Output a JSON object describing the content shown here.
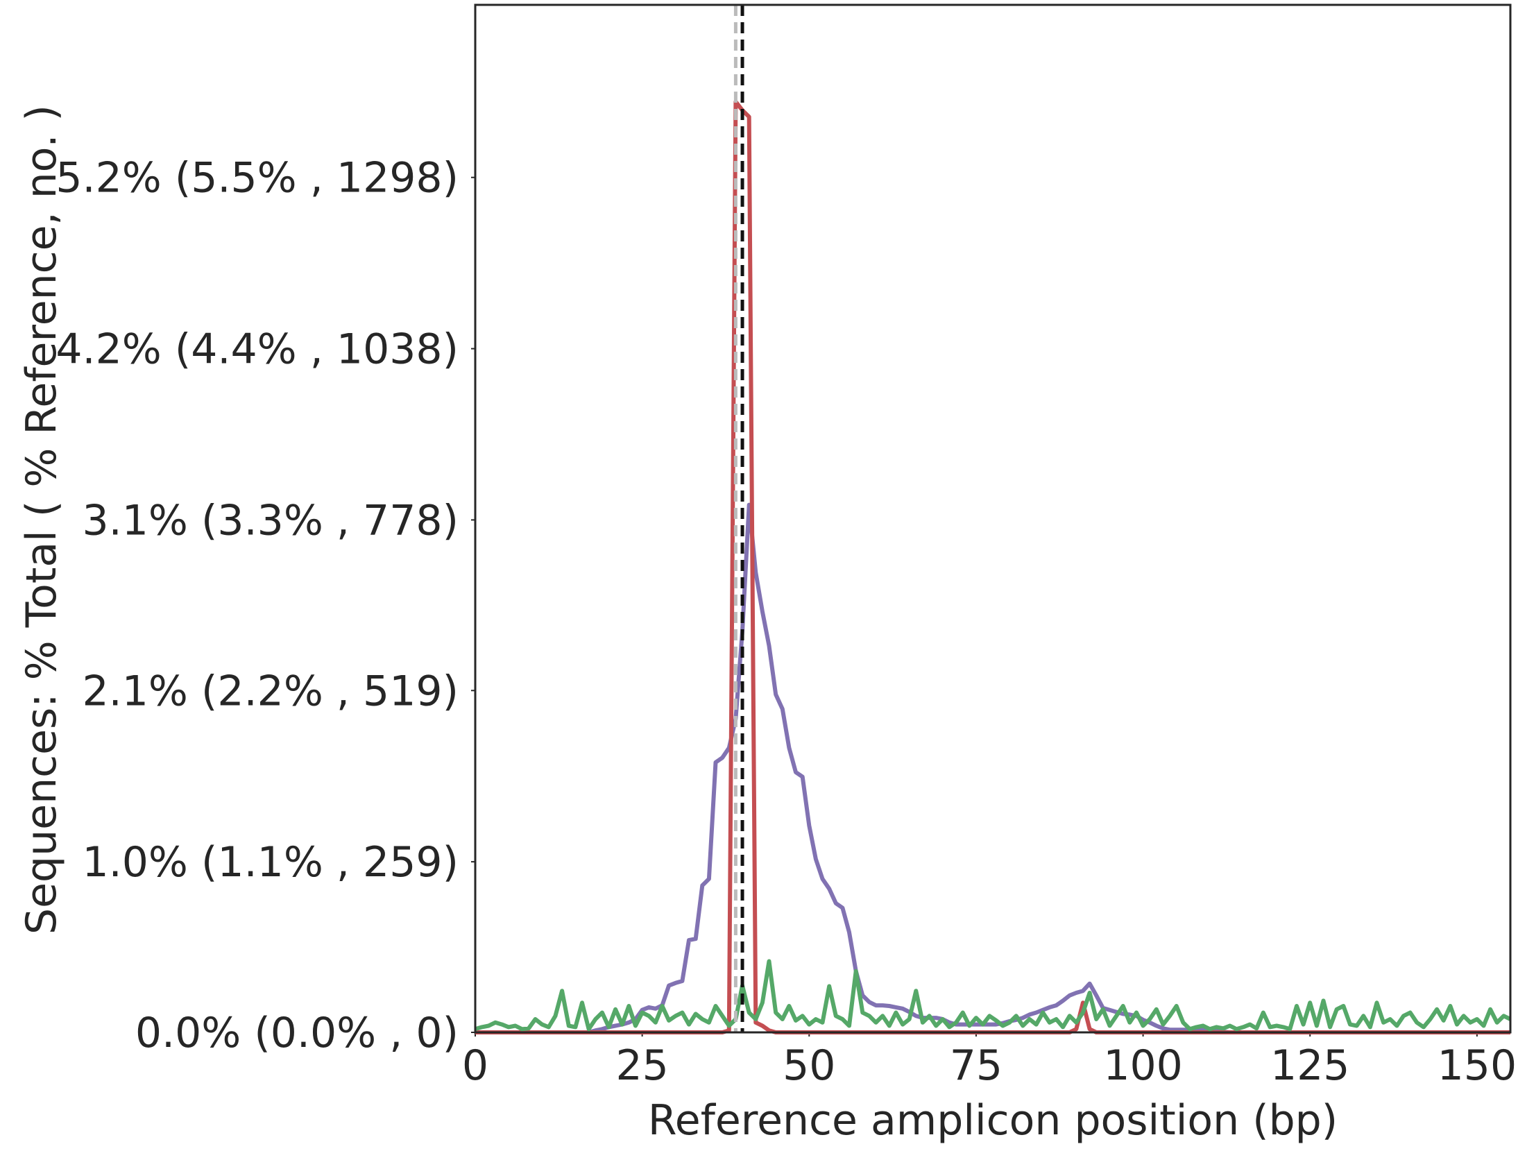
{
  "chart_data": {
    "type": "line",
    "x_label": "Reference amplicon position (bp)",
    "y_label": "Sequences: % Total ( % Reference, no. )",
    "xlim": [
      0,
      155
    ],
    "ylim": [
      0,
      1560
    ],
    "xticks": [
      0,
      25,
      50,
      75,
      100,
      125,
      150
    ],
    "yticks": [
      {
        "value": 0,
        "label": "0.0% (0.0% , 0)"
      },
      {
        "value": 259,
        "label": "1.0% (1.1% , 259)"
      },
      {
        "value": 519,
        "label": "2.1% (2.2% , 519)"
      },
      {
        "value": 778,
        "label": "3.1% (3.3% , 778)"
      },
      {
        "value": 1038,
        "label": "4.2% (4.4% , 1038)"
      },
      {
        "value": 1298,
        "label": "5.2% (5.5% , 1298)"
      }
    ],
    "vlines": [
      {
        "x": 39,
        "color": "#bbbbbb"
      },
      {
        "x": 40,
        "color": "#111111"
      }
    ],
    "x": [
      0,
      1,
      2,
      3,
      4,
      5,
      6,
      7,
      8,
      9,
      10,
      11,
      12,
      13,
      14,
      15,
      16,
      17,
      18,
      19,
      20,
      21,
      22,
      23,
      24,
      25,
      26,
      27,
      28,
      29,
      30,
      31,
      32,
      33,
      34,
      35,
      36,
      37,
      38,
      39,
      40,
      41,
      42,
      43,
      44,
      45,
      46,
      47,
      48,
      49,
      50,
      51,
      52,
      53,
      54,
      55,
      56,
      57,
      58,
      59,
      60,
      61,
      62,
      63,
      64,
      65,
      66,
      67,
      68,
      69,
      70,
      71,
      72,
      73,
      74,
      75,
      76,
      77,
      78,
      79,
      80,
      81,
      82,
      83,
      84,
      85,
      86,
      87,
      88,
      89,
      90,
      91,
      92,
      93,
      94,
      95,
      96,
      97,
      98,
      99,
      100,
      101,
      102,
      103,
      104,
      105,
      106,
      107,
      108,
      109,
      110,
      111,
      112,
      113,
      114,
      115,
      116,
      117,
      118,
      119,
      120,
      121,
      122,
      123,
      124,
      125,
      126,
      127,
      128,
      129,
      130,
      131,
      132,
      133,
      134,
      135,
      136,
      137,
      138,
      139,
      140,
      141,
      142,
      143,
      144,
      145,
      146,
      147,
      148,
      149,
      150,
      151,
      152,
      153,
      154,
      155
    ],
    "series": [
      {
        "color": "#8172b2",
        "values": [
          0,
          0,
          0,
          0,
          0,
          0,
          0,
          0,
          0,
          0,
          0,
          0,
          0,
          0,
          0,
          0,
          0,
          0,
          3,
          5,
          8,
          10,
          12,
          15,
          20,
          34,
          38,
          36,
          41,
          71,
          75,
          78,
          140,
          142,
          223,
          233,
          410,
          417,
          432,
          476,
          609,
          801,
          698,
          639,
          587,
          513,
          491,
          432,
          395,
          388,
          314,
          263,
          233,
          218,
          196,
          189,
          152,
          93,
          56,
          46,
          41,
          41,
          40,
          38,
          36,
          31,
          25,
          22,
          22,
          22,
          20,
          15,
          12,
          12,
          12,
          12,
          12,
          12,
          12,
          14,
          17,
          19,
          22,
          27,
          30,
          34,
          38,
          41,
          48,
          56,
          60,
          63,
          74,
          56,
          37,
          34,
          31,
          28,
          27,
          25,
          19,
          15,
          10,
          6,
          4,
          4,
          4,
          4,
          4,
          4,
          3,
          2,
          1,
          0,
          0,
          0,
          0,
          0,
          0,
          0,
          0,
          0,
          0,
          0,
          0,
          0,
          0,
          0,
          0,
          0,
          0,
          0,
          0,
          0,
          0,
          0,
          0,
          0,
          0,
          0,
          0,
          0,
          0,
          0,
          0,
          0,
          0,
          0,
          0,
          0,
          0,
          0,
          0,
          0,
          0,
          0
        ]
      },
      {
        "color": "#c44e52",
        "values": [
          0,
          0,
          0,
          0,
          0,
          0,
          0,
          0,
          0,
          0,
          0,
          0,
          0,
          0,
          0,
          0,
          0,
          0,
          0,
          0,
          0,
          0,
          0,
          0,
          0,
          0,
          0,
          0,
          0,
          0,
          0,
          0,
          0,
          0,
          0,
          0,
          0,
          0,
          3,
          1413,
          1400,
          1390,
          15,
          10,
          3,
          0,
          0,
          0,
          0,
          0,
          0,
          0,
          0,
          0,
          0,
          0,
          0,
          0,
          0,
          0,
          0,
          0,
          0,
          0,
          0,
          0,
          0,
          0,
          0,
          0,
          0,
          0,
          0,
          0,
          0,
          0,
          0,
          0,
          0,
          0,
          0,
          0,
          0,
          0,
          0,
          0,
          0,
          0,
          0,
          0,
          5,
          45,
          5,
          0,
          0,
          0,
          0,
          0,
          0,
          0,
          0,
          0,
          0,
          0,
          0,
          0,
          0,
          0,
          0,
          0,
          0,
          0,
          0,
          0,
          0,
          0,
          0,
          0,
          0,
          0,
          0,
          0,
          0,
          0,
          0,
          0,
          0,
          0,
          0,
          0,
          0,
          0,
          0,
          0,
          0,
          0,
          0,
          0,
          0,
          0,
          0,
          0,
          0,
          0,
          0,
          0,
          0,
          0,
          0,
          0,
          0,
          0,
          0,
          0,
          0,
          0
        ]
      },
      {
        "color": "#55a868",
        "values": [
          5,
          8,
          10,
          15,
          12,
          8,
          10,
          5,
          6,
          20,
          12,
          8,
          25,
          63,
          10,
          8,
          45,
          5,
          20,
          30,
          8,
          35,
          12,
          40,
          10,
          30,
          25,
          15,
          40,
          18,
          25,
          30,
          12,
          28,
          20,
          15,
          40,
          25,
          10,
          20,
          71,
          30,
          20,
          45,
          108,
          30,
          20,
          40,
          18,
          25,
          12,
          20,
          15,
          70,
          25,
          20,
          10,
          93,
          30,
          25,
          15,
          25,
          10,
          30,
          12,
          20,
          63,
          15,
          25,
          10,
          20,
          8,
          15,
          30,
          10,
          22,
          12,
          25,
          18,
          10,
          15,
          25,
          10,
          20,
          12,
          30,
          15,
          20,
          8,
          25,
          15,
          30,
          60,
          20,
          35,
          10,
          25,
          40,
          15,
          30,
          10,
          20,
          35,
          12,
          25,
          40,
          15,
          5,
          8,
          10,
          5,
          8,
          6,
          10,
          5,
          8,
          12,
          6,
          30,
          8,
          10,
          8,
          5,
          40,
          12,
          45,
          10,
          48,
          8,
          35,
          40,
          12,
          10,
          25,
          8,
          45,
          15,
          20,
          10,
          25,
          30,
          15,
          8,
          20,
          35,
          18,
          40,
          12,
          25,
          15,
          20,
          10,
          35,
          15,
          25,
          20
        ]
      }
    ]
  }
}
